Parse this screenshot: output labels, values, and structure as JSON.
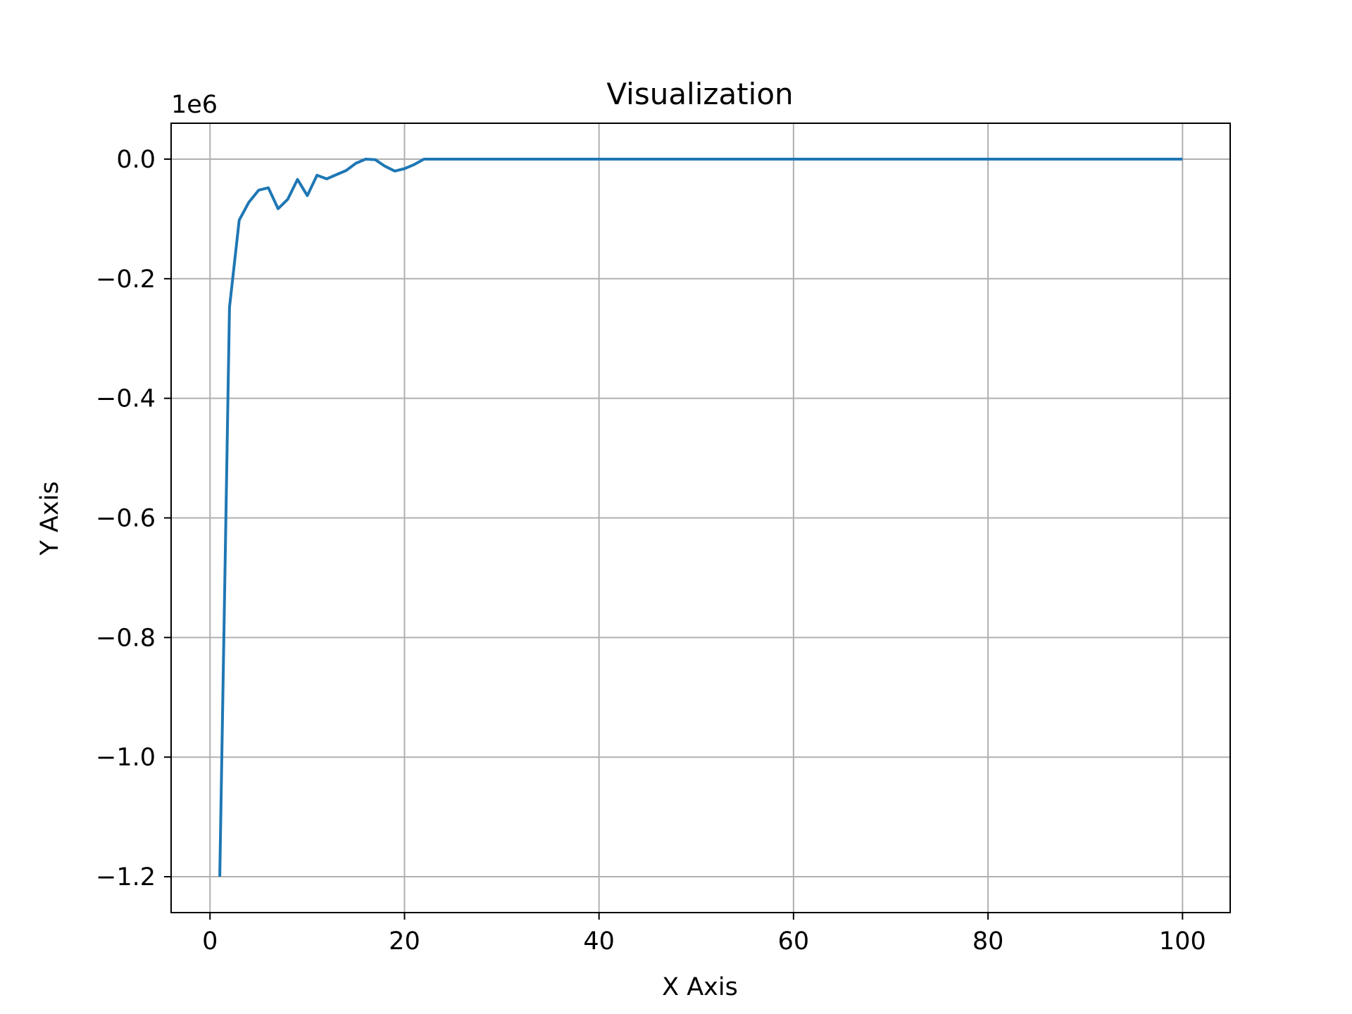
{
  "chart_data": {
    "type": "line",
    "title": "Visualization",
    "xlabel": "X Axis",
    "ylabel": "Y Axis",
    "y_offset_label": "1e6",
    "y_scale_factor": 1000000,
    "xlim": [
      -4.0,
      104.9
    ],
    "ylim": [
      -1.26,
      0.06
    ],
    "grid": true,
    "x_ticks": [
      {
        "value": 0,
        "label": "0"
      },
      {
        "value": 20,
        "label": "20"
      },
      {
        "value": 40,
        "label": "40"
      },
      {
        "value": 60,
        "label": "60"
      },
      {
        "value": 80,
        "label": "80"
      },
      {
        "value": 100,
        "label": "100"
      }
    ],
    "y_ticks": [
      {
        "value": 0.0,
        "label": "0.0"
      },
      {
        "value": -0.2,
        "label": "−0.2"
      },
      {
        "value": -0.4,
        "label": "−0.4"
      },
      {
        "value": -0.6,
        "label": "−0.6"
      },
      {
        "value": -0.8,
        "label": "−0.8"
      },
      {
        "value": -1.0,
        "label": "−1.0"
      },
      {
        "value": -1.2,
        "label": "−1.2"
      }
    ],
    "series": [
      {
        "color": "#1f77b4",
        "x": [
          1,
          2,
          3,
          4,
          5,
          6,
          7,
          8,
          9,
          10,
          11,
          12,
          13,
          14,
          15,
          16,
          17,
          18,
          19,
          20,
          21,
          22,
          30,
          40,
          50,
          60,
          70,
          80,
          90,
          100
        ],
        "y": [
          -1.2,
          -0.248,
          -0.102,
          -0.072,
          -0.052,
          -0.048,
          -0.083,
          -0.067,
          -0.034,
          -0.061,
          -0.027,
          -0.033,
          -0.026,
          -0.019,
          -0.007,
          0.0,
          -0.001,
          -0.012,
          -0.02,
          -0.016,
          -0.009,
          0.0,
          0.0,
          0.0,
          0.0,
          0.0,
          0.0,
          0.0,
          0.0,
          0.0
        ]
      }
    ]
  }
}
